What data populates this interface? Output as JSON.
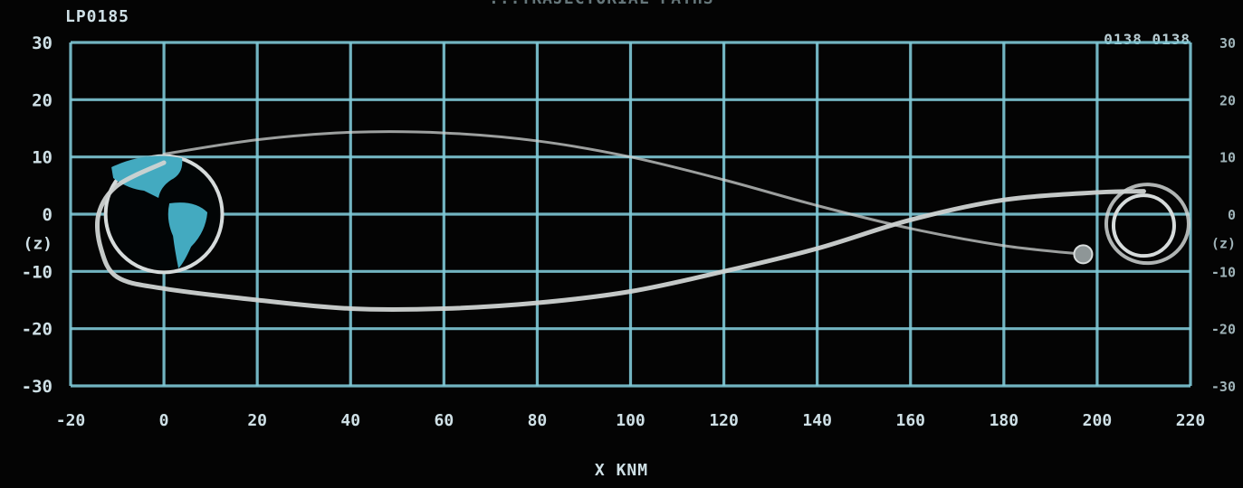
{
  "top_title": "...TRAJECTORIAL PATHS",
  "code_left": "LP0185",
  "code_right": "0138 0138",
  "colors": {
    "grid": "#7fc8d6",
    "trajectory": "#cfd3d2",
    "earth_ocean": "#020506",
    "earth_land": "#43aac0",
    "moon": "#d6dbdb",
    "text": "#cfe0e6"
  },
  "chart_data": {
    "type": "line",
    "title": "",
    "xlabel": "X KNM",
    "ylabel_left": "(z)",
    "ylabel_right": "(z)",
    "xlim": [
      -20,
      220
    ],
    "ylim": [
      -30,
      30
    ],
    "x_ticks": [
      "-20",
      "0",
      "20",
      "40",
      "60",
      "80",
      "100",
      "120",
      "140",
      "160",
      "180",
      "200",
      "220"
    ],
    "y_ticks_left": [
      "30",
      "20",
      "10",
      "0",
      "-10",
      "-20",
      "-30"
    ],
    "y_ticks_right": [
      "30",
      "20",
      "10",
      "0",
      "-10",
      "-20",
      "-30"
    ],
    "grid": true,
    "series": [
      {
        "role": "outbound-upper",
        "x": [
          0,
          20,
          40,
          60,
          80,
          100,
          120,
          140,
          160,
          180,
          197
        ],
        "y": [
          10.5,
          13,
          14.3,
          14.2,
          12.8,
          10,
          6,
          1.5,
          -2.5,
          -5.5,
          -7
        ]
      },
      {
        "role": "figure-eight",
        "x": [
          0,
          -10,
          -14,
          -13.5,
          -10,
          0,
          20,
          40,
          60,
          80,
          100,
          120,
          140,
          160,
          180,
          200,
          210
        ],
        "y": [
          9,
          5,
          0,
          -6,
          -11,
          -13,
          -15,
          -16.5,
          -16.5,
          -15.5,
          -13.5,
          -10,
          -6,
          -1,
          2.5,
          3.8,
          4
        ]
      }
    ],
    "annotations": [
      {
        "name": "earth",
        "x": 0,
        "y": 0,
        "radius_x": 12.5
      },
      {
        "name": "moon",
        "x": 210,
        "y": -2,
        "radius_x": 6.5
      },
      {
        "name": "spacecraft",
        "x": 197,
        "y": -7
      }
    ]
  }
}
